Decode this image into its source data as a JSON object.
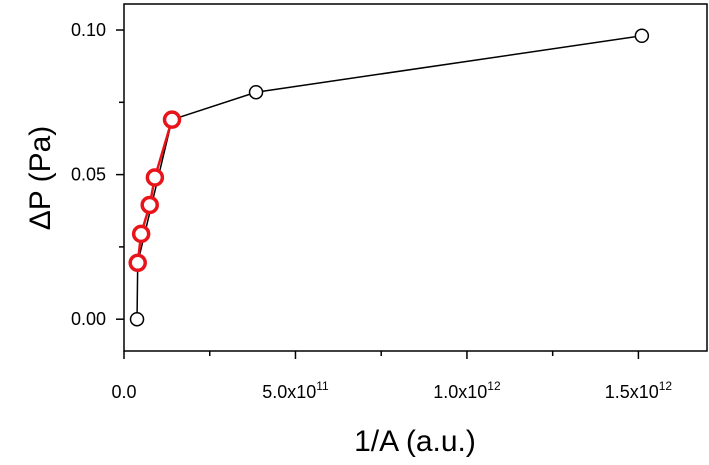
{
  "chart_data": {
    "type": "scatter",
    "xlabel": "1/A (a.u.)",
    "ylabel": "ΔP (Pa)",
    "xlim": [
      0,
      1700000000000.0
    ],
    "ylim": [
      -0.011,
      0.109
    ],
    "x_ticks": [
      {
        "value": 0,
        "label": "0.0"
      },
      {
        "value": 500000000000.0,
        "mantissa": "5.0x10",
        "exp": "11"
      },
      {
        "value": 1000000000000.0,
        "mantissa": "1.0x10",
        "exp": "12"
      },
      {
        "value": 1500000000000.0,
        "mantissa": "1.5x10",
        "exp": "12"
      }
    ],
    "x_minor_ticks": [
      250000000000.0,
      750000000000.0,
      1250000000000.0
    ],
    "y_ticks": [
      {
        "value": 0,
        "label": "0.00"
      },
      {
        "value": 0.05,
        "label": "0.05"
      },
      {
        "value": 0.1,
        "label": "0.10"
      }
    ],
    "y_minor_ticks": [
      0.025,
      0.075
    ],
    "grid": false,
    "series": [
      {
        "color": "#000000",
        "marker": "open-circle",
        "points": [
          {
            "x": 38000000000.0,
            "y": 0.0
          },
          {
            "x": 40000000000.0,
            "y": 0.0195
          },
          {
            "x": 140000000000.0,
            "y": 0.069
          },
          {
            "x": 385000000000.0,
            "y": 0.0785
          },
          {
            "x": 1510000000000.0,
            "y": 0.098
          }
        ]
      },
      {
        "color": "#e8141a",
        "marker": "open-circle-bold",
        "points": [
          {
            "x": 40000000000.0,
            "y": 0.0195
          },
          {
            "x": 50000000000.0,
            "y": 0.0295
          },
          {
            "x": 75000000000.0,
            "y": 0.0395
          },
          {
            "x": 90000000000.0,
            "y": 0.049
          },
          {
            "x": 140000000000.0,
            "y": 0.069
          }
        ]
      }
    ]
  }
}
